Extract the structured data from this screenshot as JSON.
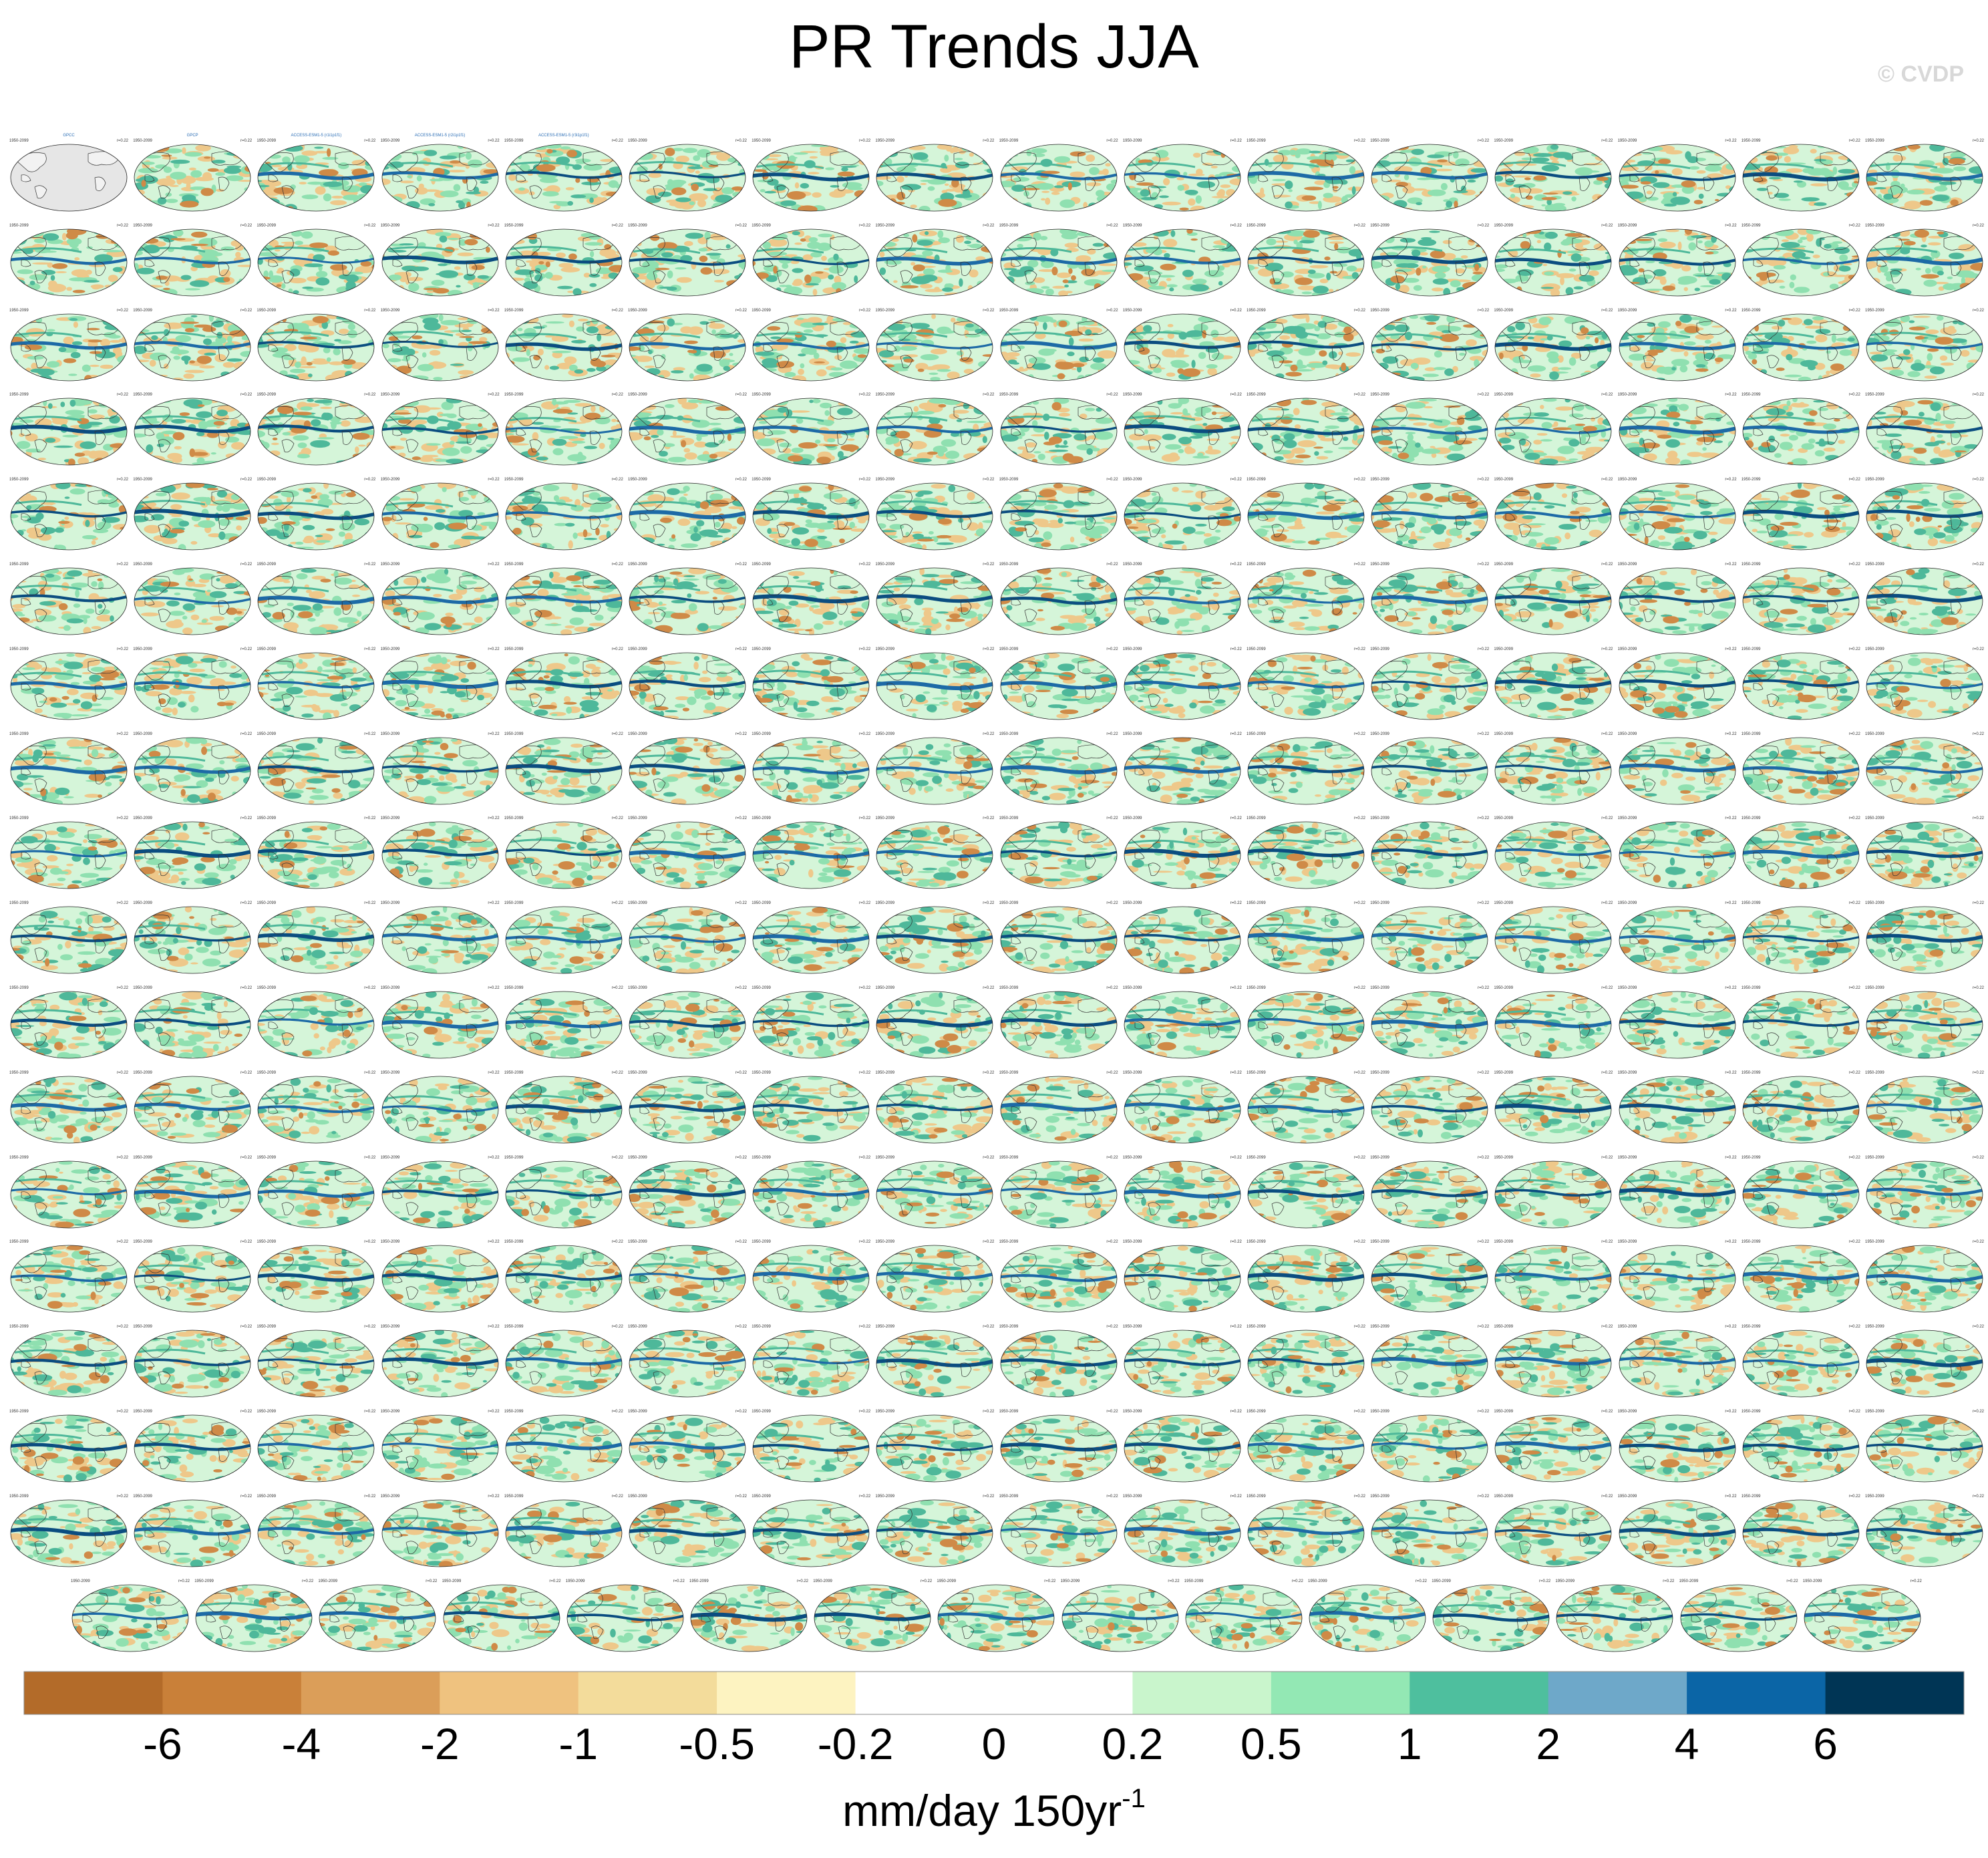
{
  "title": "PR Trends JJA",
  "watermark": "© CVDP",
  "colorbar": {
    "colors": [
      "#b36b29",
      "#c98039",
      "#db9e59",
      "#efc27f",
      "#f3dc9b",
      "#fdf3c1",
      "#ffffff",
      "#ffffff",
      "#c9f5cc",
      "#93e8b4",
      "#4ebf9e",
      "#6ea8c9",
      "#0b65a6",
      "#003555"
    ],
    "labels": [
      "-6",
      "-4",
      "-2",
      "-1",
      "-0.5",
      "-0.2",
      "0",
      "0.2",
      "0.5",
      "1",
      "2",
      "4",
      "6"
    ],
    "units": "mm/day 150yr",
    "units_exponent": "-1"
  },
  "panels": {
    "columns": 16,
    "full_rows": 17,
    "last_row_count": 15,
    "first_titles": [
      "GPCC",
      "GPCP",
      "ACCESS-ESM1-5 (r1i1p1f1)",
      "ACCESS-ESM1-5 (r2i1p1f1)",
      "ACCESS-ESM1-5 (r3i1p1f1)"
    ],
    "left_text": "1950-2099",
    "right_text": "r=0.22",
    "colors": {
      "ocean": "#d5f5d9",
      "green": "#8fe0b0",
      "teal": "#4eb89a",
      "blue": "#1d6aa6",
      "dark": "#0b4d80",
      "tan": "#eec88a",
      "brown": "#cf8a47",
      "land": "#e6e6e6"
    }
  }
}
